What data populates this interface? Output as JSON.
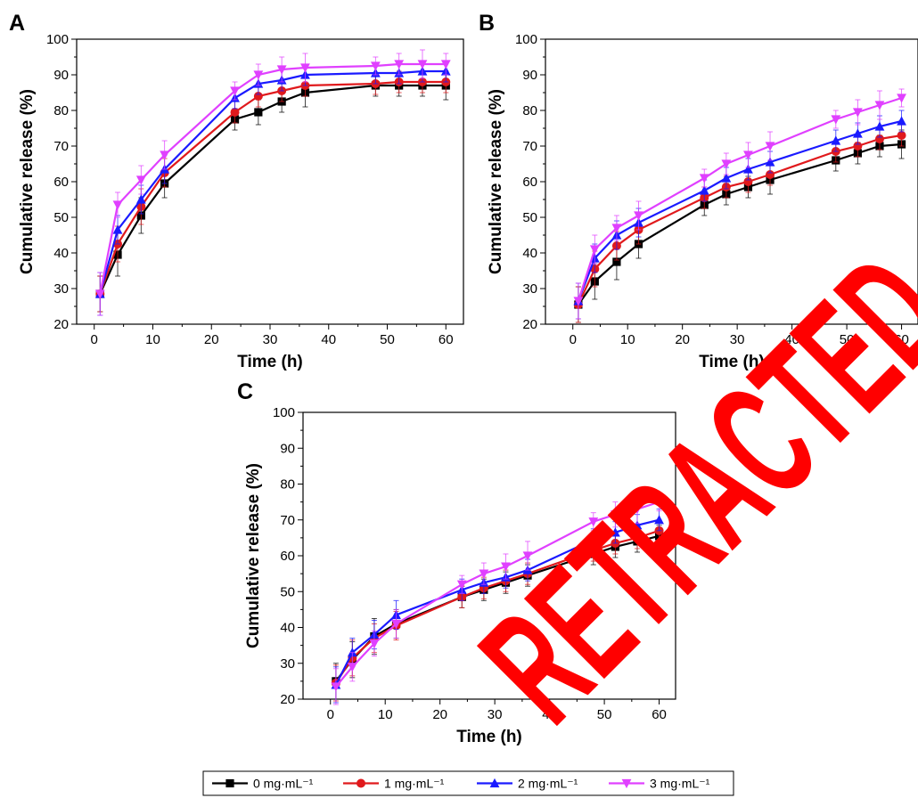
{
  "stamp": {
    "text": "RETRACTED",
    "color": "#ff0000"
  },
  "legend": {
    "entries": [
      {
        "label": "0 mg·mL⁻¹",
        "color": "#000000",
        "marker": "square"
      },
      {
        "label": "1 mg·mL⁻¹",
        "color": "#e0191c",
        "marker": "circle"
      },
      {
        "label": "2 mg·mL⁻¹",
        "color": "#1a1aff",
        "marker": "triangle-up"
      },
      {
        "label": "3 mg·mL⁻¹",
        "color": "#e040ff",
        "marker": "triangle-down"
      }
    ]
  },
  "chart_data": [
    {
      "type": "line",
      "panel": "A",
      "xlabel": "Time (h)",
      "ylabel": "Cumulative release (%)",
      "xlim": [
        -3,
        63
      ],
      "ylim": [
        20,
        100
      ],
      "xticks": [
        0,
        10,
        20,
        30,
        40,
        50,
        60
      ],
      "yticks": [
        20,
        30,
        40,
        50,
        60,
        70,
        80,
        90,
        100
      ],
      "x": [
        1,
        4,
        8,
        12,
        24,
        28,
        32,
        36,
        48,
        52,
        56,
        60
      ],
      "series": [
        {
          "name": "0 mg·mL⁻¹",
          "color": "#000000",
          "marker": "square",
          "values": [
            28.5,
            39.5,
            50.5,
            59.5,
            77.5,
            79.5,
            82.5,
            85.0,
            87.0,
            87.0,
            87.0,
            87.0
          ],
          "errors": [
            5,
            6,
            5,
            4,
            3,
            3.5,
            3,
            4,
            3,
            3,
            3,
            4
          ]
        },
        {
          "name": "1 mg·mL⁻¹",
          "color": "#e0191c",
          "marker": "circle",
          "values": [
            28.5,
            42.5,
            53.0,
            62.5,
            79.5,
            84.0,
            85.5,
            87.0,
            87.5,
            88.0,
            88.0,
            88.0
          ],
          "errors": [
            5,
            5,
            5,
            4,
            3,
            3,
            3,
            3,
            3,
            3,
            3,
            3
          ]
        },
        {
          "name": "2 mg·mL⁻¹",
          "color": "#1a1aff",
          "marker": "triangle-up",
          "values": [
            28.5,
            46.5,
            55.0,
            63.5,
            83.5,
            87.5,
            88.5,
            90.0,
            90.5,
            90.5,
            91.0,
            91.0
          ],
          "errors": [
            6,
            4,
            4,
            4,
            3,
            3,
            3,
            3,
            3,
            3,
            3,
            3
          ]
        },
        {
          "name": "3 mg·mL⁻¹",
          "color": "#e040ff",
          "marker": "triangle-down",
          "values": [
            28.5,
            53.5,
            60.5,
            67.5,
            85.5,
            90.0,
            91.5,
            92.0,
            92.5,
            93.0,
            93.0,
            93.0
          ],
          "errors": [
            6,
            3.5,
            4,
            4,
            2.5,
            3,
            3.5,
            4,
            2.5,
            3,
            4,
            3
          ]
        }
      ]
    },
    {
      "type": "line",
      "panel": "B",
      "xlabel": "Time (h)",
      "ylabel": "Cumulative release (%)",
      "xlim": [
        -5,
        63
      ],
      "ylim": [
        20,
        100
      ],
      "xticks": [
        0,
        10,
        20,
        30,
        40,
        50,
        60
      ],
      "yticks": [
        20,
        30,
        40,
        50,
        60,
        70,
        80,
        90,
        100
      ],
      "x": [
        1,
        4,
        8,
        12,
        24,
        28,
        32,
        36,
        48,
        52,
        56,
        60
      ],
      "series": [
        {
          "name": "0 mg·mL⁻¹",
          "color": "#000000",
          "marker": "square",
          "values": [
            25.5,
            32.0,
            37.5,
            42.5,
            53.5,
            56.5,
            58.5,
            60.5,
            66.0,
            68.0,
            70.0,
            70.5
          ],
          "errors": [
            5,
            5,
            5,
            4,
            3,
            3,
            3,
            4,
            3,
            3,
            3,
            4
          ]
        },
        {
          "name": "1 mg·mL⁻¹",
          "color": "#e0191c",
          "marker": "circle",
          "values": [
            25.5,
            35.5,
            42.0,
            46.5,
            55.5,
            58.5,
            60.0,
            62.0,
            68.5,
            70.0,
            72.0,
            73.0
          ],
          "errors": [
            5,
            5,
            4,
            4,
            3,
            3,
            3,
            3,
            3,
            3,
            3,
            3
          ]
        },
        {
          "name": "2 mg·mL⁻¹",
          "color": "#1a1aff",
          "marker": "triangle-up",
          "values": [
            26.5,
            38.5,
            45.0,
            48.5,
            57.5,
            61.0,
            63.5,
            65.5,
            71.5,
            73.5,
            75.5,
            77.0
          ],
          "errors": [
            5,
            4,
            4,
            4,
            3,
            3,
            3,
            3,
            3,
            3,
            3,
            3
          ]
        },
        {
          "name": "3 mg·mL⁻¹",
          "color": "#e040ff",
          "marker": "triangle-down",
          "values": [
            26.5,
            41.0,
            47.0,
            50.5,
            61.0,
            65.0,
            67.5,
            70.0,
            77.5,
            79.5,
            81.5,
            83.5
          ],
          "errors": [
            5,
            4,
            3.5,
            4,
            2.5,
            3,
            3.5,
            4,
            2.5,
            3.5,
            4,
            2.5
          ]
        }
      ]
    },
    {
      "type": "line",
      "panel": "C",
      "xlabel": "Time (h)",
      "ylabel": "Cumulative release (%)",
      "xlim": [
        -5,
        63
      ],
      "ylim": [
        20,
        100
      ],
      "xticks": [
        0,
        10,
        20,
        30,
        40,
        50,
        60
      ],
      "yticks": [
        20,
        30,
        40,
        50,
        60,
        70,
        80,
        90,
        100
      ],
      "x": [
        1,
        4,
        8,
        12,
        24,
        28,
        32,
        36,
        48,
        52,
        56,
        60
      ],
      "series": [
        {
          "name": "0 mg·mL⁻¹",
          "color": "#000000",
          "marker": "square",
          "values": [
            25.0,
            31.0,
            37.5,
            41.0,
            48.5,
            50.5,
            52.5,
            54.5,
            60.5,
            62.5,
            64.0,
            65.5
          ],
          "errors": [
            5,
            5,
            5,
            4,
            3,
            3,
            3,
            3,
            3,
            3,
            3,
            3
          ]
        },
        {
          "name": "1 mg·mL⁻¹",
          "color": "#e0191c",
          "marker": "circle",
          "values": [
            24.5,
            31.5,
            37.0,
            40.5,
            48.5,
            51.0,
            53.0,
            55.0,
            61.5,
            63.5,
            65.0,
            67.0
          ],
          "errors": [
            5,
            5,
            4,
            4,
            3,
            3,
            3,
            3,
            3,
            3,
            3,
            3
          ]
        },
        {
          "name": "2 mg·mL⁻¹",
          "color": "#1a1aff",
          "marker": "triangle-up",
          "values": [
            24.0,
            33.0,
            38.0,
            43.5,
            50.5,
            52.5,
            54.0,
            56.0,
            64.5,
            66.5,
            68.5,
            70.0
          ],
          "errors": [
            5,
            4,
            4,
            4,
            3,
            3,
            3,
            3,
            3,
            3,
            3,
            3
          ]
        },
        {
          "name": "3 mg·mL⁻¹",
          "color": "#e040ff",
          "marker": "triangle-down",
          "values": [
            23.5,
            29.0,
            35.5,
            41.0,
            52.0,
            55.0,
            57.0,
            60.0,
            69.5,
            71.5,
            73.0,
            75.0
          ],
          "errors": [
            5,
            4,
            3.5,
            4,
            2.5,
            3,
            3.5,
            4,
            2.5,
            3.5,
            4,
            2.5
          ]
        }
      ]
    }
  ]
}
